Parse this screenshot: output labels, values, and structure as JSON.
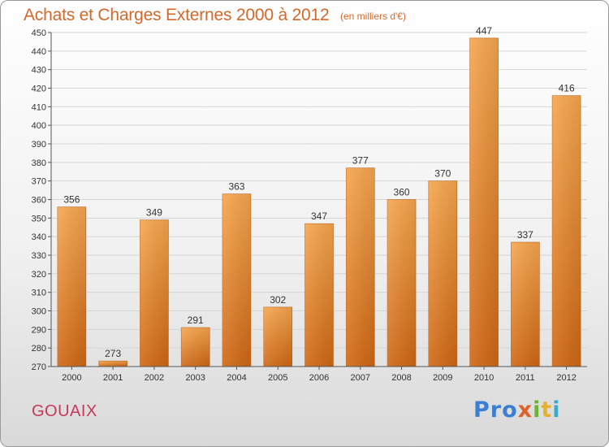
{
  "header": {
    "title": "Achats et Charges Externes 2000 à 2012",
    "subtitle": "(en milliers d'€)"
  },
  "footer": {
    "town": "GOUAIX",
    "brand": "Proxiti",
    "brand_parts": [
      "Pro",
      "x",
      "i",
      "t",
      "i"
    ]
  },
  "colors": {
    "bar_light": "#f6a64e",
    "bar_dark": "#cf6714",
    "title": "#d4682a",
    "town": "#c8385a",
    "grid": "#d5d5d5"
  },
  "chart_data": {
    "type": "bar",
    "categories": [
      "2000",
      "2001",
      "2002",
      "2003",
      "2004",
      "2005",
      "2006",
      "2007",
      "2008",
      "2009",
      "2010",
      "2011",
      "2012"
    ],
    "values": [
      356,
      273,
      349,
      291,
      363,
      302,
      347,
      377,
      360,
      370,
      447,
      337,
      416
    ],
    "title": "Achats et Charges Externes 2000 à 2012",
    "subtitle": "(en milliers d'€)",
    "ylim": [
      270,
      450
    ],
    "ytick_step": 10,
    "grid": true,
    "data_labels": true
  }
}
